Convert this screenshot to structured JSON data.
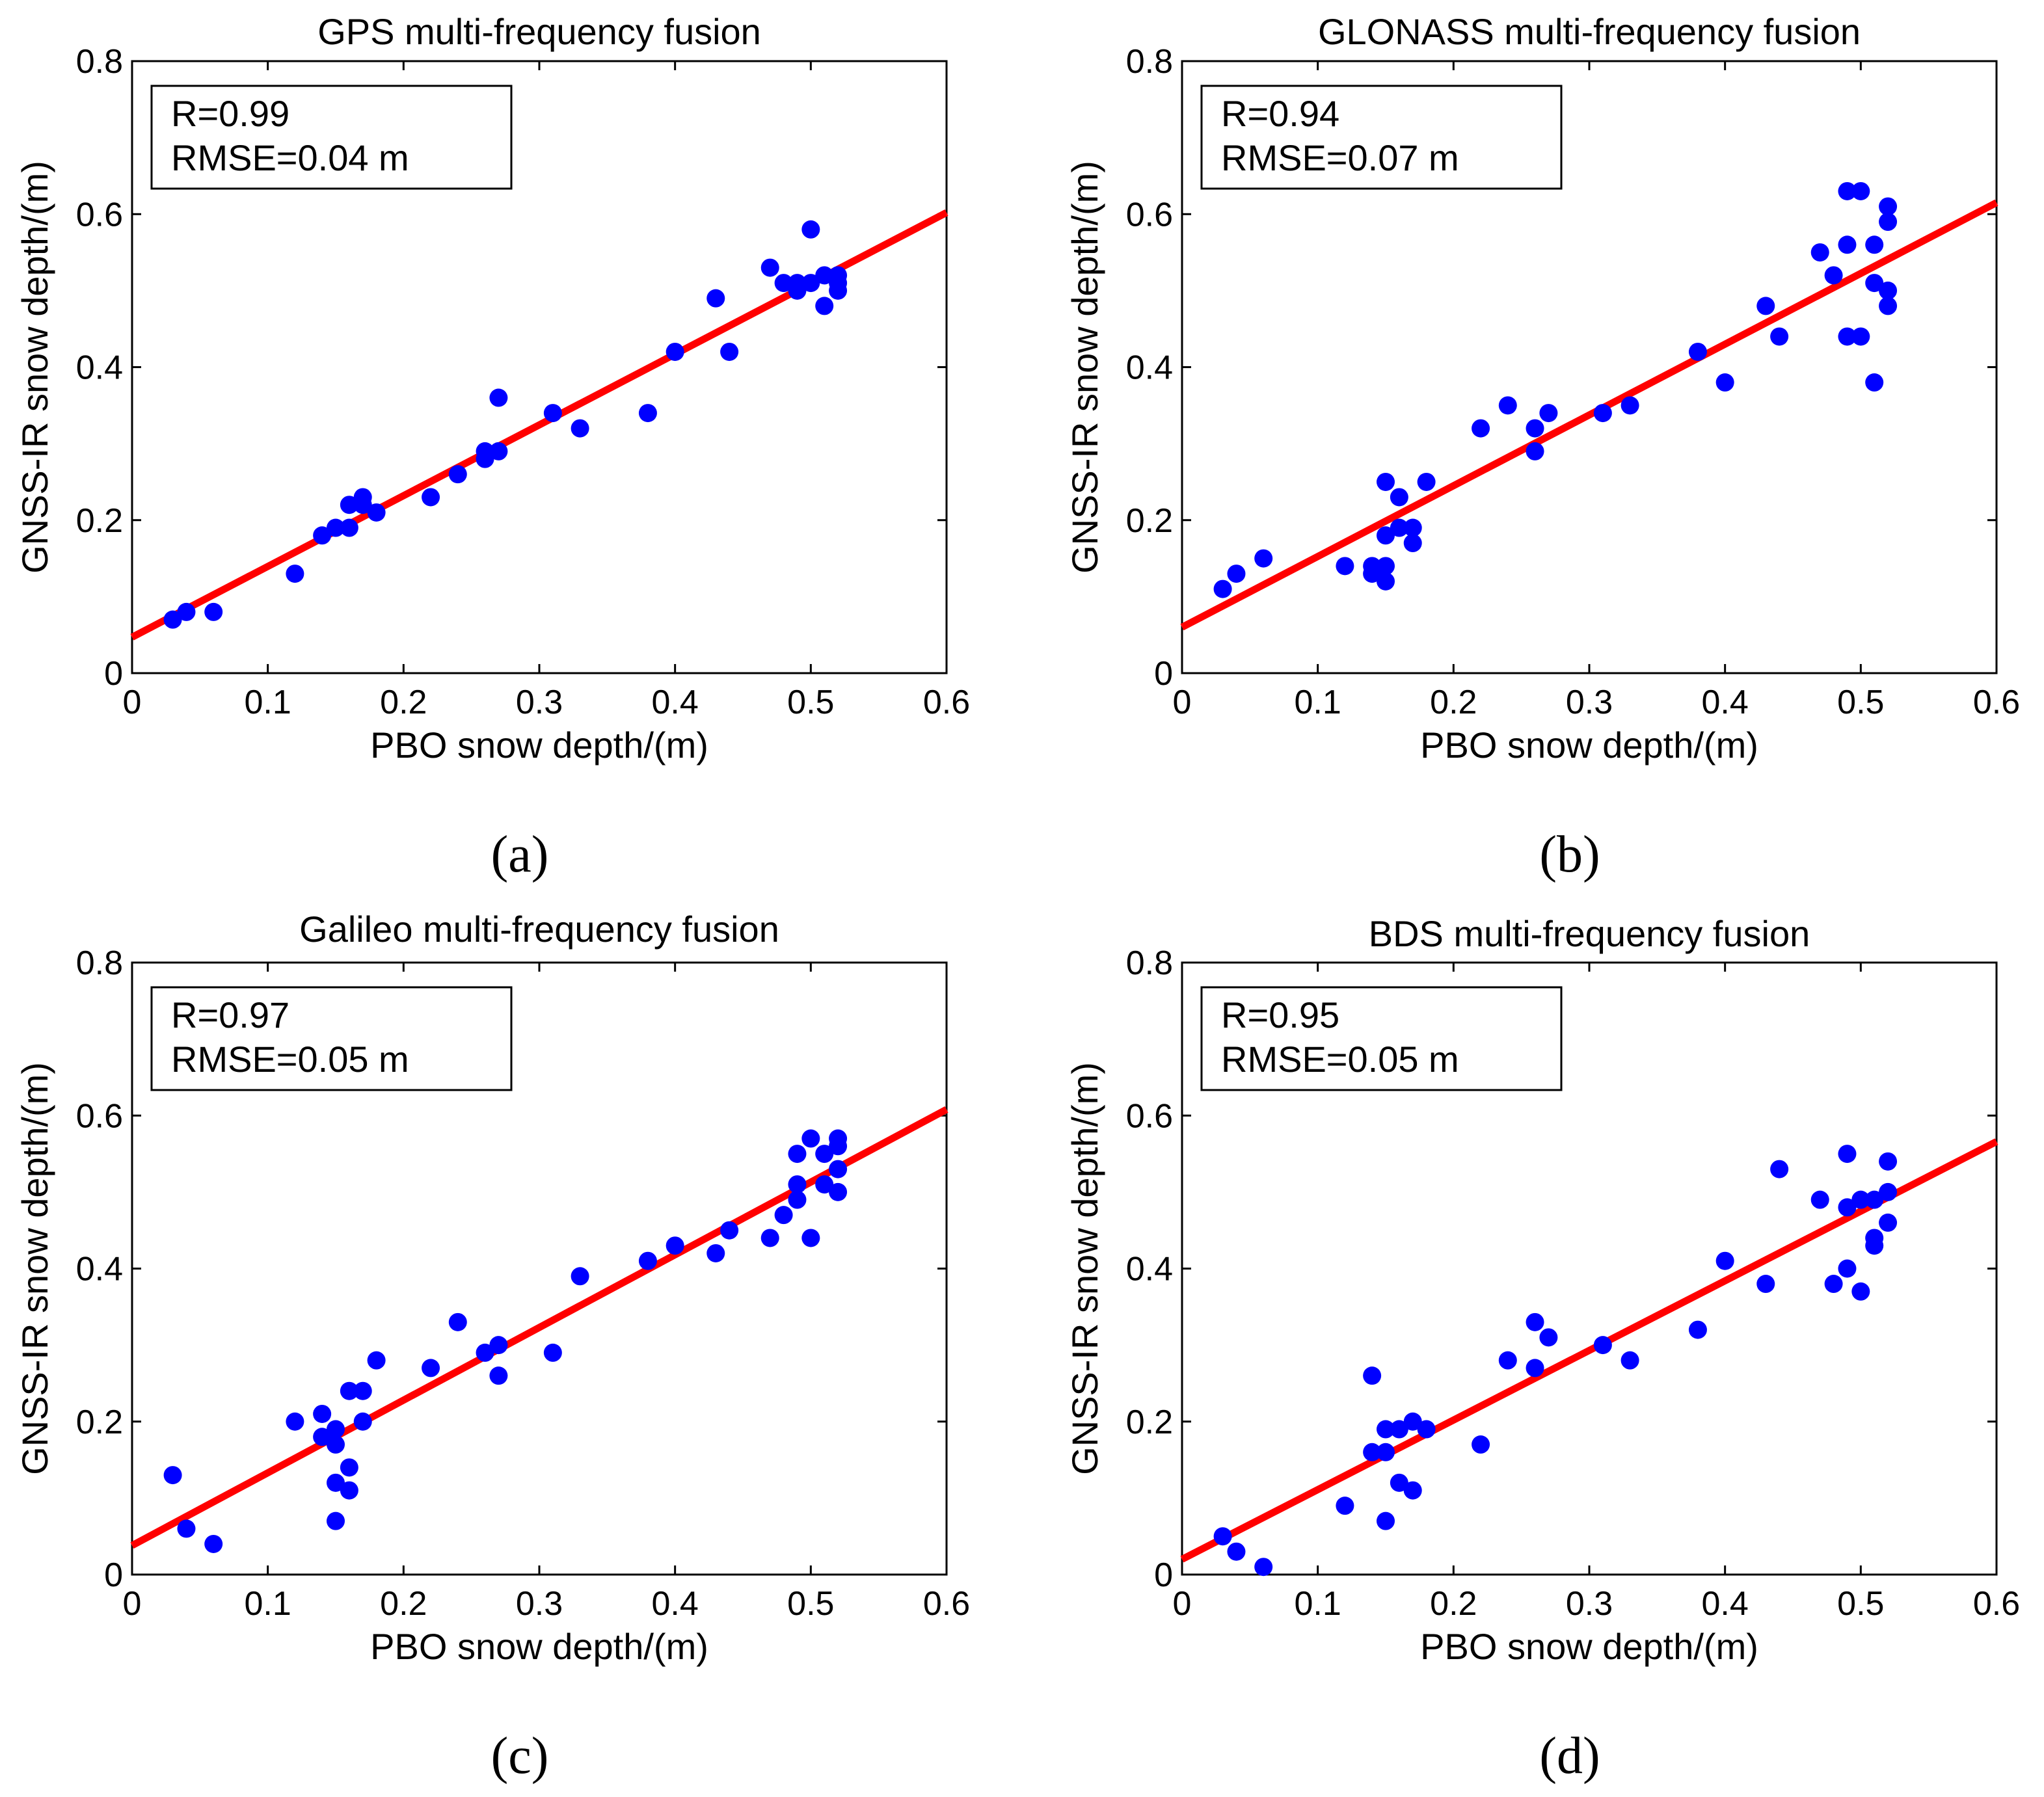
{
  "colors": {
    "points": "#0000ff",
    "fit_line": "#ff0000",
    "axes": "#000000"
  },
  "chart_data": [
    {
      "type": "scatter",
      "panel_label": "(a)",
      "title": "GPS multi-frequency fusion",
      "xlabel": "PBO snow depth/(m)",
      "ylabel": "GNSS-IR snow depth/(m)",
      "xlim": [
        0,
        0.6
      ],
      "ylim": [
        0,
        0.8
      ],
      "xticks": [
        0,
        0.1,
        0.2,
        0.3,
        0.4,
        0.5,
        0.6
      ],
      "yticks": [
        0,
        0.2,
        0.4,
        0.6,
        0.8
      ],
      "xtick_labels": [
        "0",
        "0.1",
        "0.2",
        "0.3",
        "0.4",
        "0.5",
        "0.6"
      ],
      "ytick_labels": [
        "0",
        "0.2",
        "0.4",
        "0.6",
        "0.8"
      ],
      "stats": {
        "r": "R=0.99",
        "rmse": "RMSE=0.04 m"
      },
      "fit": {
        "intercept": 0.047,
        "slope": 0.925
      },
      "points": [
        [
          0.03,
          0.07
        ],
        [
          0.04,
          0.08
        ],
        [
          0.06,
          0.08
        ],
        [
          0.12,
          0.13
        ],
        [
          0.14,
          0.18
        ],
        [
          0.15,
          0.19
        ],
        [
          0.16,
          0.19
        ],
        [
          0.16,
          0.22
        ],
        [
          0.17,
          0.22
        ],
        [
          0.17,
          0.23
        ],
        [
          0.18,
          0.21
        ],
        [
          0.22,
          0.23
        ],
        [
          0.24,
          0.26
        ],
        [
          0.26,
          0.28
        ],
        [
          0.26,
          0.29
        ],
        [
          0.27,
          0.29
        ],
        [
          0.27,
          0.36
        ],
        [
          0.31,
          0.34
        ],
        [
          0.33,
          0.32
        ],
        [
          0.38,
          0.34
        ],
        [
          0.4,
          0.42
        ],
        [
          0.43,
          0.49
        ],
        [
          0.44,
          0.42
        ],
        [
          0.47,
          0.53
        ],
        [
          0.48,
          0.51
        ],
        [
          0.49,
          0.51
        ],
        [
          0.49,
          0.5
        ],
        [
          0.5,
          0.58
        ],
        [
          0.5,
          0.51
        ],
        [
          0.51,
          0.48
        ],
        [
          0.51,
          0.52
        ],
        [
          0.52,
          0.5
        ],
        [
          0.52,
          0.51
        ],
        [
          0.52,
          0.52
        ]
      ]
    },
    {
      "type": "scatter",
      "panel_label": "(b)",
      "title": "GLONASS multi-frequency fusion",
      "xlabel": "PBO snow depth/(m)",
      "ylabel": "GNSS-IR snow depth/(m)",
      "xlim": [
        0,
        0.6
      ],
      "ylim": [
        0,
        0.8
      ],
      "xticks": [
        0,
        0.1,
        0.2,
        0.3,
        0.4,
        0.5,
        0.6
      ],
      "yticks": [
        0,
        0.2,
        0.4,
        0.6,
        0.8
      ],
      "xtick_labels": [
        "0",
        "0.1",
        "0.2",
        "0.3",
        "0.4",
        "0.5",
        "0.6"
      ],
      "ytick_labels": [
        "0",
        "0.2",
        "0.4",
        "0.6",
        "0.8"
      ],
      "stats": {
        "r": "R=0.94",
        "rmse": "RMSE=0.07 m"
      },
      "fit": {
        "intercept": 0.06,
        "slope": 0.925
      },
      "points": [
        [
          0.03,
          0.11
        ],
        [
          0.04,
          0.13
        ],
        [
          0.06,
          0.15
        ],
        [
          0.12,
          0.14
        ],
        [
          0.14,
          0.13
        ],
        [
          0.14,
          0.14
        ],
        [
          0.15,
          0.12
        ],
        [
          0.15,
          0.14
        ],
        [
          0.15,
          0.18
        ],
        [
          0.15,
          0.25
        ],
        [
          0.16,
          0.19
        ],
        [
          0.16,
          0.23
        ],
        [
          0.17,
          0.17
        ],
        [
          0.17,
          0.19
        ],
        [
          0.18,
          0.25
        ],
        [
          0.22,
          0.32
        ],
        [
          0.24,
          0.35
        ],
        [
          0.26,
          0.29
        ],
        [
          0.26,
          0.32
        ],
        [
          0.27,
          0.34
        ],
        [
          0.31,
          0.34
        ],
        [
          0.33,
          0.35
        ],
        [
          0.38,
          0.42
        ],
        [
          0.4,
          0.38
        ],
        [
          0.43,
          0.48
        ],
        [
          0.44,
          0.44
        ],
        [
          0.47,
          0.55
        ],
        [
          0.48,
          0.52
        ],
        [
          0.49,
          0.56
        ],
        [
          0.49,
          0.63
        ],
        [
          0.49,
          0.44
        ],
        [
          0.5,
          0.63
        ],
        [
          0.5,
          0.44
        ],
        [
          0.51,
          0.56
        ],
        [
          0.51,
          0.51
        ],
        [
          0.51,
          0.38
        ],
        [
          0.52,
          0.61
        ],
        [
          0.52,
          0.59
        ],
        [
          0.52,
          0.5
        ],
        [
          0.52,
          0.48
        ]
      ]
    },
    {
      "type": "scatter",
      "panel_label": "(c)",
      "title": "Galileo multi-frequency fusion",
      "xlabel": "PBO snow depth/(m)",
      "ylabel": "GNSS-IR snow depth/(m)",
      "xlim": [
        0,
        0.6
      ],
      "ylim": [
        0,
        0.8
      ],
      "xticks": [
        0,
        0.1,
        0.2,
        0.3,
        0.4,
        0.5,
        0.6
      ],
      "yticks": [
        0,
        0.2,
        0.4,
        0.6,
        0.8
      ],
      "xtick_labels": [
        "0",
        "0.1",
        "0.2",
        "0.3",
        "0.4",
        "0.5",
        "0.6"
      ],
      "ytick_labels": [
        "0",
        "0.2",
        "0.4",
        "0.6",
        "0.8"
      ],
      "stats": {
        "r": "R=0.97",
        "rmse": "RMSE=0.05 m"
      },
      "fit": {
        "intercept": 0.038,
        "slope": 0.95
      },
      "points": [
        [
          0.03,
          0.13
        ],
        [
          0.04,
          0.06
        ],
        [
          0.06,
          0.04
        ],
        [
          0.12,
          0.2
        ],
        [
          0.14,
          0.21
        ],
        [
          0.14,
          0.18
        ],
        [
          0.15,
          0.19
        ],
        [
          0.15,
          0.17
        ],
        [
          0.15,
          0.12
        ],
        [
          0.15,
          0.07
        ],
        [
          0.16,
          0.24
        ],
        [
          0.16,
          0.14
        ],
        [
          0.16,
          0.11
        ],
        [
          0.17,
          0.24
        ],
        [
          0.17,
          0.2
        ],
        [
          0.18,
          0.28
        ],
        [
          0.22,
          0.27
        ],
        [
          0.24,
          0.33
        ],
        [
          0.26,
          0.29
        ],
        [
          0.27,
          0.3
        ],
        [
          0.27,
          0.26
        ],
        [
          0.31,
          0.29
        ],
        [
          0.33,
          0.39
        ],
        [
          0.38,
          0.41
        ],
        [
          0.4,
          0.43
        ],
        [
          0.43,
          0.42
        ],
        [
          0.44,
          0.45
        ],
        [
          0.47,
          0.44
        ],
        [
          0.48,
          0.47
        ],
        [
          0.49,
          0.55
        ],
        [
          0.49,
          0.51
        ],
        [
          0.49,
          0.49
        ],
        [
          0.5,
          0.57
        ],
        [
          0.5,
          0.44
        ],
        [
          0.51,
          0.55
        ],
        [
          0.51,
          0.51
        ],
        [
          0.52,
          0.57
        ],
        [
          0.52,
          0.56
        ],
        [
          0.52,
          0.53
        ],
        [
          0.52,
          0.5
        ]
      ]
    },
    {
      "type": "scatter",
      "panel_label": "(d)",
      "title": "BDS multi-frequency fusion",
      "xlabel": "PBO snow depth/(m)",
      "ylabel": "GNSS-IR snow depth/(m)",
      "xlim": [
        0,
        0.6
      ],
      "ylim": [
        0,
        0.8
      ],
      "xticks": [
        0,
        0.1,
        0.2,
        0.3,
        0.4,
        0.5,
        0.6
      ],
      "yticks": [
        0,
        0.2,
        0.4,
        0.6,
        0.8
      ],
      "xtick_labels": [
        "0",
        "0.1",
        "0.2",
        "0.3",
        "0.4",
        "0.5",
        "0.6"
      ],
      "ytick_labels": [
        "0",
        "0.2",
        "0.4",
        "0.6",
        "0.8"
      ],
      "stats": {
        "r": "R=0.95",
        "rmse": "RMSE=0.05 m"
      },
      "fit": {
        "intercept": 0.02,
        "slope": 0.91
      },
      "points": [
        [
          0.03,
          0.05
        ],
        [
          0.04,
          0.03
        ],
        [
          0.06,
          0.01
        ],
        [
          0.12,
          0.09
        ],
        [
          0.14,
          0.26
        ],
        [
          0.14,
          0.16
        ],
        [
          0.15,
          0.19
        ],
        [
          0.15,
          0.16
        ],
        [
          0.15,
          0.07
        ],
        [
          0.16,
          0.19
        ],
        [
          0.16,
          0.12
        ],
        [
          0.17,
          0.2
        ],
        [
          0.17,
          0.11
        ],
        [
          0.18,
          0.19
        ],
        [
          0.22,
          0.17
        ],
        [
          0.24,
          0.28
        ],
        [
          0.26,
          0.33
        ],
        [
          0.26,
          0.27
        ],
        [
          0.27,
          0.31
        ],
        [
          0.31,
          0.3
        ],
        [
          0.33,
          0.28
        ],
        [
          0.38,
          0.32
        ],
        [
          0.4,
          0.41
        ],
        [
          0.43,
          0.38
        ],
        [
          0.44,
          0.53
        ],
        [
          0.47,
          0.49
        ],
        [
          0.48,
          0.38
        ],
        [
          0.49,
          0.55
        ],
        [
          0.49,
          0.48
        ],
        [
          0.49,
          0.4
        ],
        [
          0.5,
          0.49
        ],
        [
          0.5,
          0.37
        ],
        [
          0.51,
          0.49
        ],
        [
          0.51,
          0.44
        ],
        [
          0.51,
          0.43
        ],
        [
          0.52,
          0.54
        ],
        [
          0.52,
          0.5
        ],
        [
          0.52,
          0.46
        ]
      ]
    }
  ]
}
